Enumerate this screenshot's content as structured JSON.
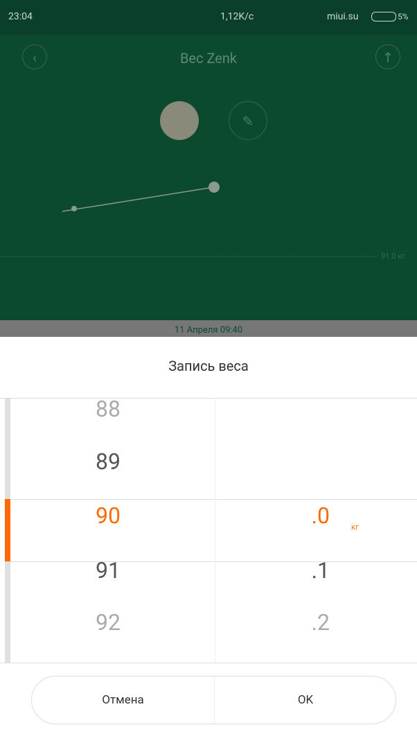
{
  "status_bar": {
    "time": "23:04",
    "speed": "1,12K/c",
    "carrier": "miui.su",
    "battery": "5%"
  },
  "header": {
    "title": "Вес Zenk"
  },
  "chart": {
    "reference_label": "91.0 кг"
  },
  "date_strip": "11 Апреля 09:40",
  "dialog": {
    "title": "Запись веса",
    "integer_options": [
      "88",
      "89",
      "90",
      "91",
      "92"
    ],
    "decimal_options": [
      ".0",
      ".1",
      ".2"
    ],
    "unit": "кг",
    "buttons": {
      "cancel": "Отмена",
      "ok": "OK"
    }
  }
}
